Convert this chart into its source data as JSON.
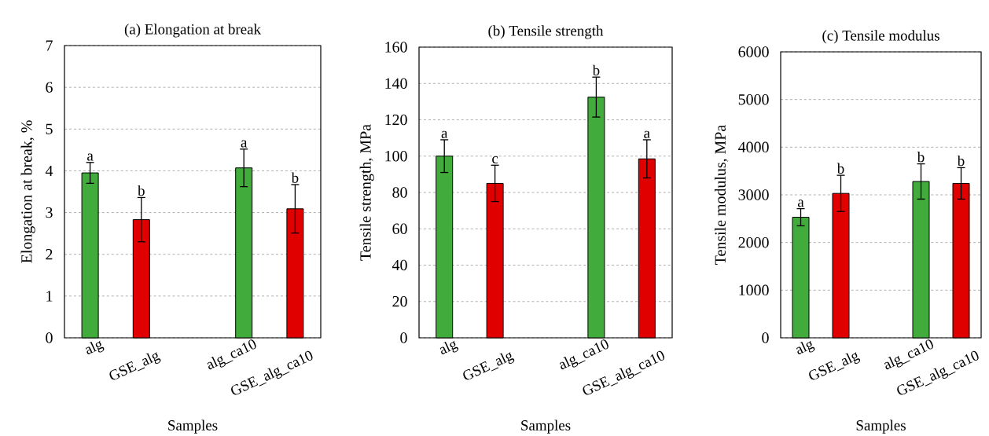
{
  "chart_data": [
    {
      "type": "bar",
      "title": "(a) Elongation at break",
      "xlabel": "Samples",
      "ylabel": "Elongation at break, %",
      "categories": [
        "alg",
        "GSE_alg",
        null,
        "alg_ca10",
        "GSE_alg_ca10"
      ],
      "values": [
        3.95,
        2.83,
        null,
        4.07,
        3.09
      ],
      "errors": [
        0.25,
        0.53,
        null,
        0.45,
        0.58
      ],
      "colors": [
        "#41ac3b",
        "#e00000",
        null,
        "#41ac3b",
        "#e00000"
      ],
      "ylim": [
        0,
        7
      ],
      "yticks": [
        0,
        1,
        2,
        3,
        4,
        5,
        6,
        7
      ],
      "grid": "y",
      "annotations": [
        "a",
        "b",
        "a",
        "b"
      ]
    },
    {
      "type": "bar",
      "title": "(b) Tensile strength",
      "xlabel": "Samples",
      "ylabel": "Tensile strength, MPa",
      "categories": [
        "alg",
        "GSE_alg",
        null,
        "alg_ca10",
        "GSE_alg_ca10"
      ],
      "values": [
        100,
        85,
        null,
        132.5,
        98.5
      ],
      "errors": [
        9,
        10,
        null,
        11,
        10.5
      ],
      "colors": [
        "#41ac3b",
        "#e00000",
        null,
        "#41ac3b",
        "#e00000"
      ],
      "ylim": [
        0,
        160
      ],
      "yticks": [
        0,
        20,
        40,
        60,
        80,
        100,
        120,
        140,
        160
      ],
      "grid": "y",
      "annotations": [
        "a",
        "c",
        "b",
        "a"
      ]
    },
    {
      "type": "bar",
      "title": "(c) Tensile modulus",
      "xlabel": "Samples",
      "ylabel": "Tensile modulus, MPa",
      "categories": [
        "alg",
        "GSE_alg",
        null,
        "alg_ca10",
        "GSE_alg_ca10"
      ],
      "values": [
        2530,
        3030,
        null,
        3280,
        3240
      ],
      "errors": [
        180,
        380,
        null,
        370,
        330
      ],
      "colors": [
        "#41ac3b",
        "#e00000",
        null,
        "#41ac3b",
        "#e00000"
      ],
      "ylim": [
        0,
        6000
      ],
      "yticks": [
        0,
        1000,
        2000,
        3000,
        4000,
        5000,
        6000
      ],
      "grid": "y",
      "annotations": [
        "a",
        "b",
        "b",
        "b"
      ]
    }
  ]
}
